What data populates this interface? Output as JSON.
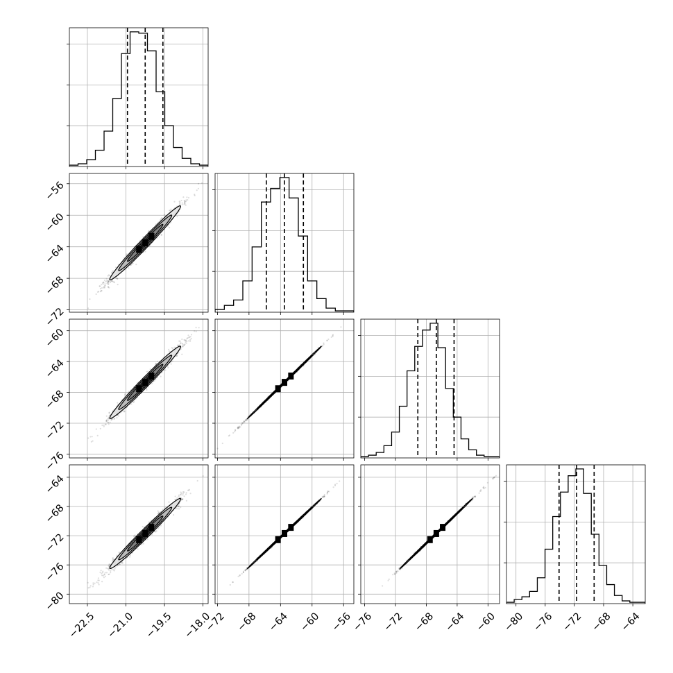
{
  "chart_data": {
    "type": "corner",
    "grid": true,
    "variables": [
      {
        "range": [
          -23.2,
          -17.8
        ],
        "ticks": [
          -22.5,
          -21.0,
          -19.5,
          -18.0
        ],
        "tick_labels": [
          "−22.5",
          "−21.0",
          "−19.5",
          "−18.0"
        ],
        "hist_ticks": [
          0.3,
          0.6,
          0.9
        ],
        "quantiles": [
          -20.94,
          -20.25,
          -19.56
        ],
        "hist": [
          0.01,
          0.02,
          0.05,
          0.12,
          0.26,
          0.5,
          0.83,
          0.99,
          0.98,
          0.85,
          0.55,
          0.3,
          0.14,
          0.06,
          0.02,
          0.01
        ]
      },
      {
        "range": [
          -72.3,
          -54.7
        ],
        "ticks": [
          -72,
          -68,
          -64,
          -60,
          -56
        ],
        "tick_labels": [
          "−72",
          "−68",
          "−64",
          "−60",
          "−56"
        ],
        "hist_ticks": [
          0.3,
          0.6,
          0.9
        ],
        "quantiles": [
          -65.8,
          -63.5,
          -61.1
        ],
        "hist": [
          0.02,
          0.05,
          0.09,
          0.23,
          0.48,
          0.81,
          0.91,
          0.99,
          0.84,
          0.56,
          0.23,
          0.1,
          0.03,
          0.01,
          0.01
        ]
      },
      {
        "range": [
          -76.5,
          -58.5
        ],
        "ticks": [
          -76,
          -72,
          -68,
          -64,
          -60
        ],
        "tick_labels": [
          "−76",
          "−72",
          "−68",
          "−64",
          "−60"
        ],
        "hist_ticks": [
          0.3,
          0.6,
          0.9
        ],
        "quantiles": [
          -69.1,
          -66.7,
          -64.4
        ],
        "hist": [
          0.01,
          0.02,
          0.04,
          0.09,
          0.19,
          0.38,
          0.64,
          0.82,
          0.94,
          0.99,
          0.81,
          0.51,
          0.3,
          0.14,
          0.06,
          0.02,
          0.01,
          0.01
        ]
      },
      {
        "range": [
          -81.3,
          -62.3
        ],
        "ticks": [
          -80,
          -76,
          -72,
          -68,
          -64
        ],
        "tick_labels": [
          "−80",
          "−76",
          "−72",
          "−68",
          "−64"
        ],
        "hist_ticks": [
          0.3,
          0.6,
          0.9
        ],
        "quantiles": [
          -74.1,
          -71.7,
          -69.3
        ],
        "hist": [
          0.01,
          0.03,
          0.05,
          0.09,
          0.19,
          0.4,
          0.64,
          0.82,
          0.94,
          0.99,
          0.81,
          0.51,
          0.28,
          0.14,
          0.06,
          0.02,
          0.01,
          0.01
        ]
      }
    ],
    "correlations": [
      [
        1.0,
        0.985,
        0.985,
        0.985
      ],
      [
        0.985,
        1.0,
        0.9995,
        0.9995
      ],
      [
        0.985,
        0.9995,
        1.0,
        0.9995
      ],
      [
        0.985,
        0.9995,
        0.9995,
        1.0
      ]
    ]
  }
}
